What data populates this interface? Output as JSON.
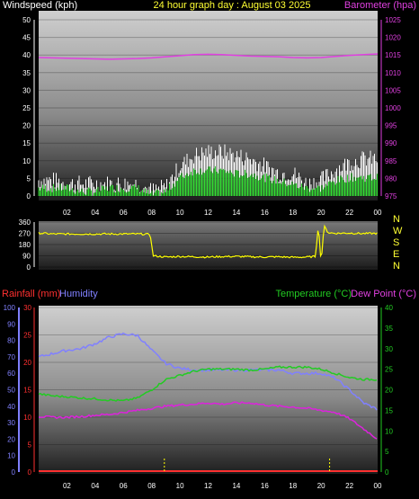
{
  "title": "24 hour graph day : August 03 2025",
  "colors": {
    "background": "#000000",
    "axis_text": "#ffffff",
    "title": "#ffff33",
    "wind_label": "#ffffff",
    "baro": "#e040e0",
    "wind_gust": "#ffffff",
    "wind_avg": "#33dd33",
    "direction": "#ffff00",
    "rain": "#ff3030",
    "humidity": "#8080ff",
    "temperature": "#22cc22",
    "dew_point": "#dd22dd",
    "rain_marks": "#ffff00"
  },
  "time_ticks": [
    "02",
    "04",
    "06",
    "08",
    "10",
    "12",
    "14",
    "16",
    "18",
    "20",
    "22",
    "00"
  ],
  "compass_labels": [
    "N",
    "W",
    "S",
    "E",
    "N"
  ],
  "chart_data": [
    {
      "type": "line",
      "name": "wind-barometer",
      "y_left_label": "Windspeed (kph)",
      "y_right_label": "Barometer (hpa)",
      "y_left_range": [
        0,
        50
      ],
      "y_right_range": [
        975,
        1025
      ],
      "y_left_ticks": [
        0,
        5,
        10,
        15,
        20,
        25,
        30,
        35,
        40,
        45,
        50
      ],
      "y_right_ticks": [
        975,
        980,
        985,
        990,
        995,
        1000,
        1005,
        1010,
        1015,
        1020,
        1025
      ],
      "x_hours": [
        0,
        1,
        2,
        3,
        4,
        5,
        6,
        7,
        8,
        9,
        10,
        11,
        12,
        13,
        14,
        15,
        16,
        17,
        18,
        19,
        20,
        21,
        22,
        23,
        24
      ],
      "barometer": [
        1014.3,
        1014.2,
        1014.1,
        1014.0,
        1013.9,
        1013.8,
        1013.9,
        1014.0,
        1014.2,
        1014.5,
        1014.8,
        1015.1,
        1015.2,
        1015.1,
        1014.9,
        1014.7,
        1014.6,
        1014.5,
        1014.3,
        1014.2,
        1014.3,
        1014.6,
        1014.9,
        1015.1,
        1015.3
      ],
      "wind_gust": [
        4,
        4,
        3,
        3,
        3,
        3,
        3,
        3,
        1,
        2,
        8,
        11,
        12,
        12,
        11,
        10,
        8,
        6,
        6,
        3,
        4,
        7,
        9,
        10,
        10
      ],
      "wind_avg": [
        2,
        2,
        2,
        1,
        1,
        2,
        2,
        2,
        0,
        1,
        5,
        7,
        7,
        7,
        6,
        6,
        5,
        4,
        3,
        2,
        2,
        4,
        5,
        5,
        5
      ]
    },
    {
      "type": "line",
      "name": "wind-direction",
      "y_range": [
        0,
        360
      ],
      "y_ticks": [
        0,
        90,
        180,
        270,
        360
      ],
      "x_hours": [
        0,
        1,
        2,
        3,
        4,
        5,
        6,
        7,
        7.9,
        8.1,
        9,
        10,
        11,
        12,
        13,
        14,
        15,
        16,
        17,
        18,
        19,
        19.6,
        19.8,
        20,
        20.2,
        20.5,
        21,
        22,
        23,
        24
      ],
      "direction": [
        272,
        265,
        265,
        265,
        265,
        265,
        265,
        265,
        262,
        90,
        80,
        85,
        82,
        80,
        84,
        85,
        82,
        80,
        82,
        78,
        80,
        85,
        340,
        30,
        330,
        275,
        270,
        272,
        268,
        270
      ]
    },
    {
      "type": "line",
      "name": "rain-humidity-temperature",
      "y_left_outer_label": "Rainfall (mm)",
      "y_left_inner_label": "Humidity",
      "y_right_label_1": "Temperature (°C)",
      "y_right_label_2": "Dew Point (°C)",
      "humidity_range": [
        0,
        100
      ],
      "humidity_ticks": [
        0,
        10,
        20,
        30,
        40,
        50,
        60,
        70,
        80,
        90,
        100
      ],
      "rain_range": [
        0,
        30
      ],
      "rain_ticks": [
        0,
        5,
        10,
        15,
        20,
        25,
        30
      ],
      "temp_range": [
        0,
        40
      ],
      "temp_ticks": [
        0,
        5,
        10,
        15,
        20,
        25,
        30,
        35,
        40
      ],
      "x_hours": [
        0,
        1,
        2,
        3,
        4,
        5,
        6,
        7,
        8,
        9,
        10,
        11,
        12,
        13,
        14,
        15,
        16,
        17,
        18,
        19,
        20,
        21,
        22,
        23,
        24
      ],
      "humidity": [
        70,
        72,
        74,
        75,
        78,
        82,
        84,
        83,
        74,
        66,
        63,
        62,
        62,
        62,
        62,
        62,
        62,
        62,
        60,
        60,
        60,
        57,
        50,
        42,
        38
      ],
      "temperature": [
        19.0,
        18.5,
        18.3,
        18.0,
        17.8,
        17.5,
        17.3,
        18.0,
        20.0,
        22.5,
        23.5,
        24.5,
        25.0,
        25.0,
        25.0,
        24.8,
        25.0,
        25.5,
        25.5,
        25.5,
        25.0,
        24.0,
        23.0,
        22.5,
        22.5
      ],
      "dew_point": [
        13.5,
        13.3,
        13.3,
        13.5,
        13.8,
        14.0,
        14.5,
        15.0,
        15.5,
        16.0,
        16.3,
        16.5,
        16.8,
        16.5,
        16.8,
        16.8,
        16.3,
        16.0,
        15.8,
        15.5,
        15.0,
        14.5,
        13.0,
        10.5,
        8.0
      ],
      "rain_total": [
        0,
        0,
        0,
        0,
        0,
        0,
        0,
        0,
        0,
        0,
        0,
        0,
        0,
        0,
        0,
        0,
        0,
        0,
        0,
        0,
        0,
        0,
        0,
        0,
        0
      ],
      "rain_event_hours": [
        8.9,
        20.6
      ]
    }
  ]
}
